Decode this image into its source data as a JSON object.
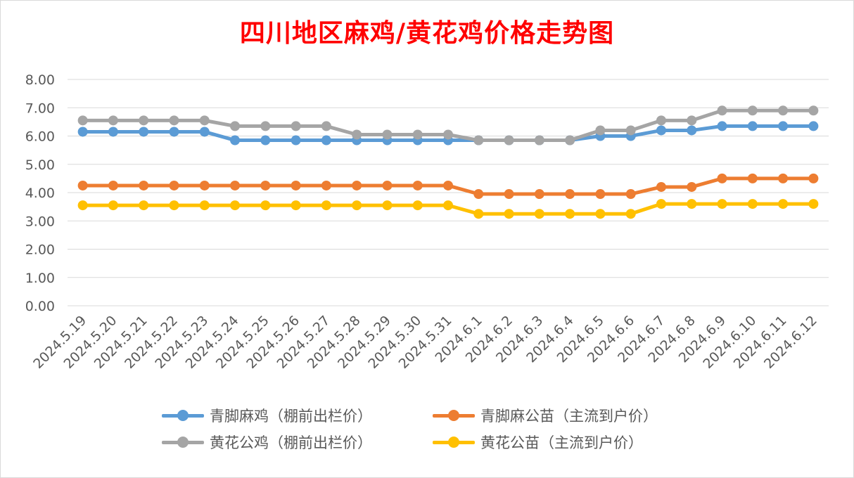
{
  "chart_data": {
    "type": "line",
    "title": "四川地区麻鸡/黄花鸡价格走势图",
    "xlabel": "",
    "ylabel": "",
    "ylim": [
      0,
      8
    ],
    "yticks": [
      "0.00",
      "1.00",
      "2.00",
      "3.00",
      "4.00",
      "5.00",
      "6.00",
      "7.00",
      "8.00"
    ],
    "grid": true,
    "legend_position": "bottom",
    "categories": [
      "2024.5.19",
      "2024.5.20",
      "2024.5.21",
      "2024.5.22",
      "2024.5.23",
      "2024.5.24",
      "2024.5.25",
      "2024.5.26",
      "2024.5.27",
      "2024.5.28",
      "2024.5.29",
      "2024.5.30",
      "2024.5.31",
      "2024.6.1",
      "2024.6.2",
      "2024.6.3",
      "2024.6.4",
      "2024.6.5",
      "2024.6.6",
      "2024.6.7",
      "2024.6.8",
      "2024.6.9",
      "2024.6.10",
      "2024.6.11",
      "2024.6.12"
    ],
    "series": [
      {
        "name": "青脚麻鸡（棚前出栏价）",
        "color": "#5b9bd5",
        "values": [
          6.15,
          6.15,
          6.15,
          6.15,
          6.15,
          5.85,
          5.85,
          5.85,
          5.85,
          5.85,
          5.85,
          5.85,
          5.85,
          5.85,
          5.85,
          5.85,
          5.85,
          6.0,
          6.0,
          6.2,
          6.2,
          6.35,
          6.35,
          6.35,
          6.35
        ]
      },
      {
        "name": "青脚麻公苗（主流到户价）",
        "color": "#ed7d31",
        "values": [
          4.25,
          4.25,
          4.25,
          4.25,
          4.25,
          4.25,
          4.25,
          4.25,
          4.25,
          4.25,
          4.25,
          4.25,
          4.25,
          3.95,
          3.95,
          3.95,
          3.95,
          3.95,
          3.95,
          4.2,
          4.2,
          4.5,
          4.5,
          4.5,
          4.5
        ]
      },
      {
        "name": "黄花公鸡（棚前出栏价）",
        "color": "#a5a5a5",
        "values": [
          6.55,
          6.55,
          6.55,
          6.55,
          6.55,
          6.35,
          6.35,
          6.35,
          6.35,
          6.05,
          6.05,
          6.05,
          6.05,
          5.85,
          5.85,
          5.85,
          5.85,
          6.2,
          6.2,
          6.55,
          6.55,
          6.9,
          6.9,
          6.9,
          6.9
        ]
      },
      {
        "name": "黄花公苗（主流到户价）",
        "color": "#ffc000",
        "values": [
          3.55,
          3.55,
          3.55,
          3.55,
          3.55,
          3.55,
          3.55,
          3.55,
          3.55,
          3.55,
          3.55,
          3.55,
          3.55,
          3.25,
          3.25,
          3.25,
          3.25,
          3.25,
          3.25,
          3.6,
          3.6,
          3.6,
          3.6,
          3.6,
          3.6
        ]
      }
    ]
  }
}
